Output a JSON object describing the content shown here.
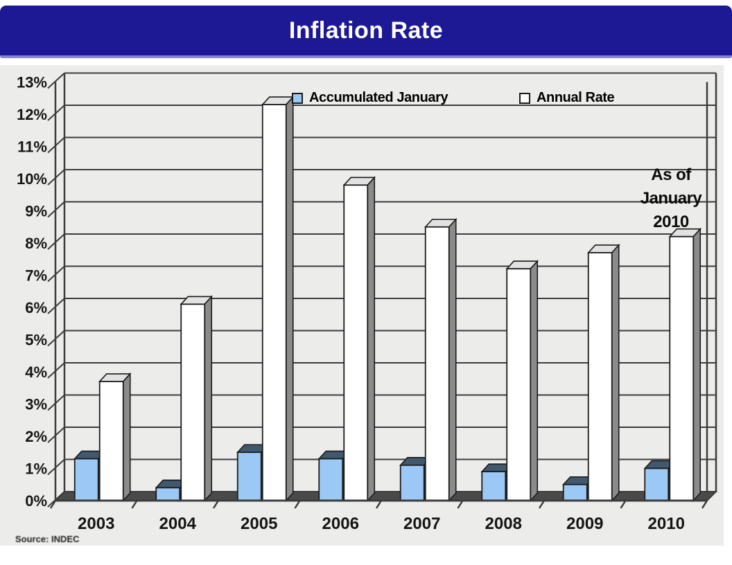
{
  "window": {
    "title": "Inflation Rate"
  },
  "legend": {
    "items": [
      {
        "label": "Accumulated January",
        "swatch_color": "#9cc8f5"
      },
      {
        "label": "Annual Rate",
        "swatch_color": "#ffffff"
      }
    ]
  },
  "annotation": {
    "lines": [
      "As of",
      "January",
      "2010"
    ]
  },
  "source_note": "Source: INDEC",
  "colors": {
    "title_bar": "#1d1894",
    "title_text": "#ffffff",
    "panel_bg": "#ececea",
    "grid": "#3c3c3c",
    "floor": "#4a4a4a",
    "bar_border": "#1b1b1b",
    "accumulated_front": "#9cc8f5",
    "accumulated_top": "#42586c",
    "accumulated_side": "#2e3d4a",
    "annual_front": "#ffffff",
    "annual_top": "#e2e2e2",
    "annual_side": "#8b8b8b"
  },
  "chart_data": {
    "type": "bar",
    "style": "3d-column",
    "title": "Inflation Rate",
    "categories": [
      "2003",
      "2004",
      "2005",
      "2006",
      "2007",
      "2008",
      "2009",
      "2010"
    ],
    "series": [
      {
        "name": "Accumulated January",
        "color": "#9cc8f5",
        "values": [
          1.3,
          0.4,
          1.5,
          1.3,
          1.1,
          0.9,
          0.5,
          1.0
        ]
      },
      {
        "name": "Annual Rate",
        "color": "#ffffff",
        "values": [
          3.7,
          6.1,
          12.3,
          9.8,
          8.5,
          7.2,
          7.7,
          8.2
        ]
      }
    ],
    "xlabel": "",
    "ylabel": "",
    "ylim": [
      0,
      13
    ],
    "ytick_labels": [
      "0%",
      "1%",
      "2%",
      "3%",
      "4%",
      "5%",
      "6%",
      "7%",
      "8%",
      "9%",
      "10%",
      "11%",
      "12%",
      "13%"
    ],
    "grid": true,
    "legend_position": "top-inside",
    "annotation": "As of January 2010",
    "source": "Source: INDEC"
  }
}
